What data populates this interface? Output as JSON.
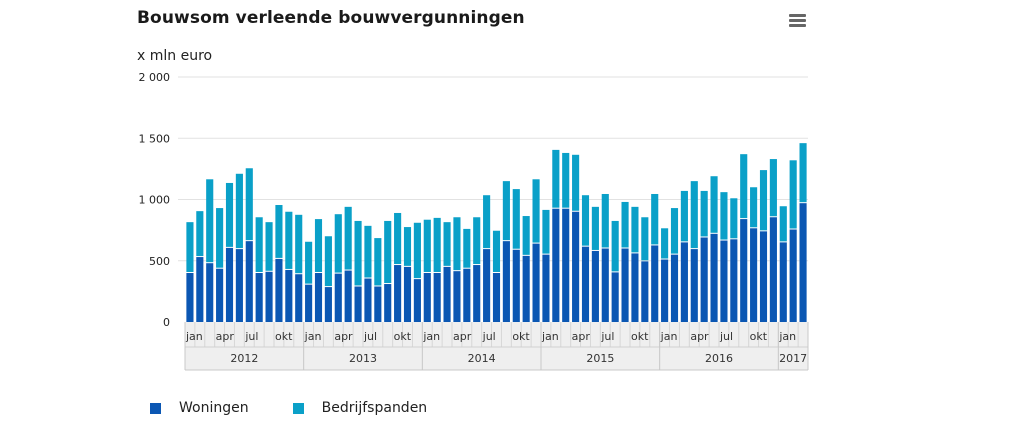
{
  "chart_data": {
    "type": "bar",
    "stacked": true,
    "title": "Bouwsom verleende bouwvergunningen",
    "ylabel": "x mln euro",
    "xlabel": "",
    "ylim": [
      0,
      2000
    ],
    "yticks": [
      0,
      500,
      1000,
      1500,
      2000
    ],
    "ytick_labels": [
      "0",
      "500",
      "1 000",
      "1 500",
      "2 000"
    ],
    "grid": true,
    "legend_position": "bottom-left",
    "years": [
      {
        "label": "2012",
        "months": 12
      },
      {
        "label": "2013",
        "months": 12
      },
      {
        "label": "2014",
        "months": 12
      },
      {
        "label": "2015",
        "months": 12
      },
      {
        "label": "2016",
        "months": 12
      },
      {
        "label": "2017",
        "months": 3
      }
    ],
    "month_tick_labels": {
      "0": "jan",
      "3": "apr",
      "6": "jul",
      "9": "okt"
    },
    "categories": [
      "jan 2012",
      "feb 2012",
      "mrt 2012",
      "apr 2012",
      "mei 2012",
      "jun 2012",
      "jul 2012",
      "aug 2012",
      "sep 2012",
      "okt 2012",
      "nov 2012",
      "dec 2012",
      "jan 2013",
      "feb 2013",
      "mrt 2013",
      "apr 2013",
      "mei 2013",
      "jun 2013",
      "jul 2013",
      "aug 2013",
      "sep 2013",
      "okt 2013",
      "nov 2013",
      "dec 2013",
      "jan 2014",
      "feb 2014",
      "mrt 2014",
      "apr 2014",
      "mei 2014",
      "jun 2014",
      "jul 2014",
      "aug 2014",
      "sep 2014",
      "okt 2014",
      "nov 2014",
      "dec 2014",
      "jan 2015",
      "feb 2015",
      "mrt 2015",
      "apr 2015",
      "mei 2015",
      "jun 2015",
      "jul 2015",
      "aug 2015",
      "sep 2015",
      "okt 2015",
      "nov 2015",
      "dec 2015",
      "jan 2016",
      "feb 2016",
      "mrt 2016",
      "apr 2016",
      "mei 2016",
      "jun 2016",
      "jul 2016",
      "aug 2016",
      "sep 2016",
      "okt 2016",
      "nov 2016",
      "dec 2016",
      "jan 2017",
      "feb 2017",
      "mrt 2017"
    ],
    "series": [
      {
        "name": "Woningen",
        "color": "#0b57b3",
        "values": [
          400,
          530,
          480,
          435,
          605,
          595,
          660,
          400,
          410,
          515,
          425,
          390,
          305,
          400,
          285,
          395,
          420,
          290,
          355,
          290,
          310,
          465,
          450,
          350,
          400,
          400,
          450,
          415,
          435,
          465,
          595,
          400,
          660,
          590,
          540,
          640,
          550,
          925,
          925,
          900,
          615,
          580,
          600,
          405,
          600,
          560,
          495,
          625,
          510,
          550,
          650,
          595,
          690,
          720,
          665,
          675,
          840,
          765,
          740,
          855,
          650,
          755,
          970
        ]
      },
      {
        "name": "Bedrijfspanden",
        "color": "#0aa0c8",
        "values": [
          415,
          375,
          685,
          495,
          530,
          615,
          595,
          455,
          405,
          440,
          475,
          485,
          350,
          440,
          415,
          485,
          520,
          535,
          430,
          395,
          515,
          425,
          325,
          460,
          435,
          450,
          365,
          440,
          325,
          390,
          440,
          345,
          490,
          495,
          325,
          525,
          365,
          480,
          455,
          465,
          420,
          360,
          445,
          420,
          380,
          380,
          360,
          420,
          255,
          380,
          420,
          555,
          380,
          470,
          395,
          335,
          530,
          335,
          500,
          475,
          295,
          565,
          490
        ]
      }
    ]
  },
  "menu": {
    "icon": "hamburger-menu-icon"
  }
}
